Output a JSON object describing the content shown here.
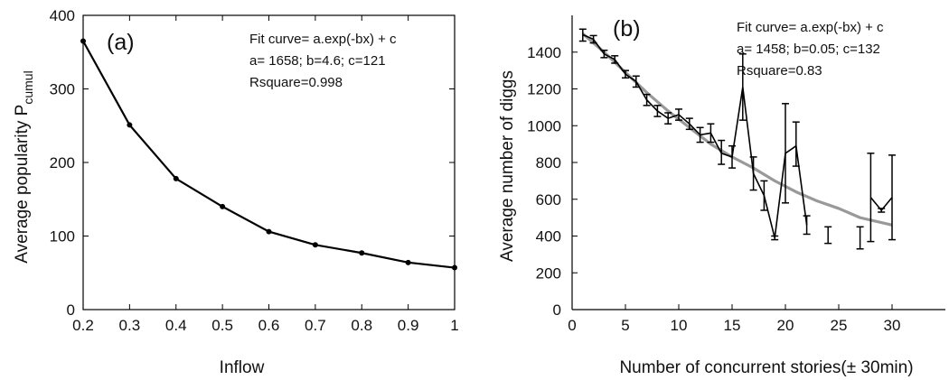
{
  "chart_data": [
    {
      "type": "line",
      "panel_label": "(a)",
      "xlabel": "Inflow",
      "ylabel_main": "Average popularity P",
      "ylabel_sub": "cumul",
      "xlim": [
        0.2,
        1.0
      ],
      "ylim": [
        0,
        400
      ],
      "xticks": [
        "0.2",
        "0.3",
        "0.4",
        "0.5",
        "0.6",
        "0.7",
        "0.8",
        "0.9",
        "1"
      ],
      "yticks": [
        "0",
        "100",
        "200",
        "300",
        "400"
      ],
      "grid": false,
      "annotations": [
        "Fit curve= a.exp(-bx) + c",
        "a= 1658; b=4.6; c=121",
        "Rsquare=0.998"
      ],
      "series": [
        {
          "x": [
            0.2,
            0.3,
            0.4,
            0.5,
            0.6,
            0.7,
            0.8,
            0.9,
            1.0
          ],
          "y": [
            365,
            251,
            178,
            140,
            106,
            88,
            77,
            64,
            57
          ],
          "color": "#000000"
        }
      ]
    },
    {
      "type": "line",
      "panel_label": "(b)",
      "xlabel": "Number of concurrent stories(± 30min)",
      "ylabel": "Average number of diggs",
      "xlim": [
        0,
        35
      ],
      "ylim": [
        0,
        1600
      ],
      "xticks": [
        "0",
        "5",
        "10",
        "15",
        "20",
        "25",
        "30"
      ],
      "yticks": [
        "0",
        "200",
        "400",
        "600",
        "800",
        "1000",
        "1200",
        "1400"
      ],
      "grid": false,
      "annotations": [
        "Fit curve= a.exp(-bx) + c",
        "a= 1458; b=0.05; c=132",
        "Rsquare=0.83"
      ],
      "series": [
        {
          "kind": "data_with_errorbars",
          "color": "#000000",
          "x": [
            1,
            2,
            3,
            4,
            5,
            6,
            7,
            8,
            9,
            10,
            11,
            12,
            13,
            14,
            15,
            16,
            17,
            18,
            19,
            20,
            21,
            22,
            28,
            29,
            30
          ],
          "y": [
            1495,
            1470,
            1390,
            1360,
            1280,
            1240,
            1140,
            1080,
            1040,
            1060,
            1010,
            950,
            960,
            850,
            830,
            1210,
            740,
            620,
            390,
            850,
            890,
            460,
            610,
            540,
            610
          ],
          "ylow": [
            1460,
            1450,
            1370,
            1340,
            1260,
            1210,
            1110,
            1050,
            1010,
            1030,
            980,
            910,
            910,
            790,
            770,
            1030,
            650,
            540,
            380,
            580,
            780,
            410,
            370,
            530,
            380
          ],
          "yhigh": [
            1525,
            1490,
            1410,
            1380,
            1300,
            1270,
            1170,
            1110,
            1070,
            1090,
            1040,
            990,
            1010,
            920,
            890,
            1390,
            830,
            700,
            400,
            1120,
            1020,
            510,
            850,
            550,
            840
          ]
        },
        {
          "kind": "errorbar_only",
          "color": "#000000",
          "x": [
            24,
            27
          ],
          "ylow": [
            360,
            330
          ],
          "yhigh": [
            450,
            450
          ]
        },
        {
          "kind": "fit",
          "color": "#999999",
          "x": [
            1,
            3,
            5,
            7,
            9,
            11,
            13,
            15,
            17,
            19,
            21,
            23,
            25,
            27,
            30
          ],
          "y": [
            1500,
            1400,
            1290,
            1180,
            1080,
            990,
            900,
            830,
            770,
            700,
            640,
            590,
            550,
            500,
            460
          ]
        }
      ]
    }
  ]
}
